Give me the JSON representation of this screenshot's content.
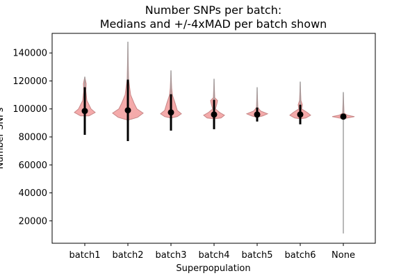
{
  "chart_data": {
    "type": "violin",
    "title_line1": "Number SNPs per batch:",
    "title_line2": "Medians and +/-4xMAD per batch shown",
    "xlabel": "Superpopulation",
    "ylabel": "Number SNPs",
    "ylim": [
      4000,
      154000
    ],
    "yticks": [
      20000,
      40000,
      60000,
      80000,
      100000,
      120000,
      140000
    ],
    "ytick_labels": [
      "20000",
      "40000",
      "60000",
      "80000",
      "100000",
      "120000",
      "140000"
    ],
    "categories": [
      "batch1",
      "batch2",
      "batch3",
      "batch4",
      "batch5",
      "batch6",
      "None"
    ],
    "violin_color": "#f4a6a6",
    "violin_edge_color": "#c48080",
    "range_line_color": "#a0a0a0",
    "mad_line_color": "#000000",
    "median_color": "#000000",
    "series": [
      {
        "category": "batch1",
        "min": 95000,
        "max": 123000,
        "median": 98500,
        "mad_low": 81500,
        "mad_high": 115500
      },
      {
        "category": "batch2",
        "min": 92000,
        "max": 148000,
        "median": 99000,
        "mad_low": 77000,
        "mad_high": 121000
      },
      {
        "category": "batch3",
        "min": 93500,
        "max": 127500,
        "median": 97500,
        "mad_low": 84500,
        "mad_high": 110500
      },
      {
        "category": "batch4",
        "min": 93000,
        "max": 121500,
        "median": 96000,
        "mad_low": 85500,
        "mad_high": 106500
      },
      {
        "category": "batch5",
        "min": 94000,
        "max": 115500,
        "median": 96000,
        "mad_low": 91000,
        "mad_high": 101000
      },
      {
        "category": "batch6",
        "min": 93000,
        "max": 119500,
        "median": 96000,
        "mad_low": 89000,
        "mad_high": 103000
      },
      {
        "category": "None",
        "min": 11000,
        "max": 112000,
        "median": 94500,
        "mad_low": 94000,
        "mad_high": 95000
      }
    ]
  }
}
